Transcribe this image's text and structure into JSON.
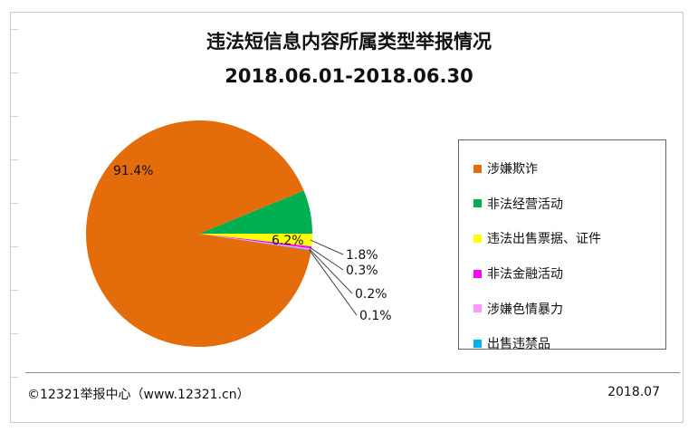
{
  "chart_data": {
    "type": "pie",
    "title": "违法短信息内容所属类型举报情况",
    "subtitle": "2018.06.01-2018.06.30",
    "categories": [
      "涉嫌欺诈",
      "非法经营活动",
      "违法出售票据、证件",
      "非法金融活动",
      "涉嫌色情暴力",
      "出售违禁品"
    ],
    "values": [
      91.4,
      6.2,
      1.8,
      0.3,
      0.2,
      0.1
    ],
    "data_labels": [
      "91.4%",
      "6.2%",
      "1.8%",
      "0.3%",
      "0.2%",
      "0.1%"
    ],
    "colors": [
      "#E46C0A",
      "#00B050",
      "#FFFF00",
      "#FF00FF",
      "#FF99FF",
      "#00B0F0"
    ],
    "legend_position": "right"
  },
  "footer": {
    "source": "©12321举报中心（www.12321.cn）",
    "date": "2018.07"
  }
}
